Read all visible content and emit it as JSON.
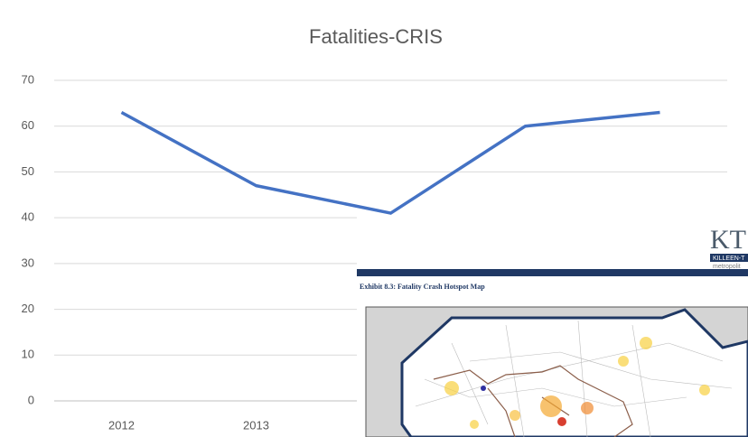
{
  "chart_data": {
    "type": "line",
    "title": "Fatalities-CRIS",
    "categories": [
      "2012",
      "2013",
      null,
      null,
      null
    ],
    "values": [
      63,
      47,
      41,
      60,
      63
    ],
    "color": "#4472c4",
    "ylim": [
      0,
      70
    ],
    "yticks": [
      0,
      10,
      20,
      30,
      40,
      50,
      60,
      70
    ],
    "grid": true
  },
  "document": {
    "logo": "KT",
    "logo_band": "KILLEEN-T",
    "logo_sub": "metropolit",
    "exhibit_title": "Exhibit 8.3: Fatality Crash Hotspot Map"
  }
}
